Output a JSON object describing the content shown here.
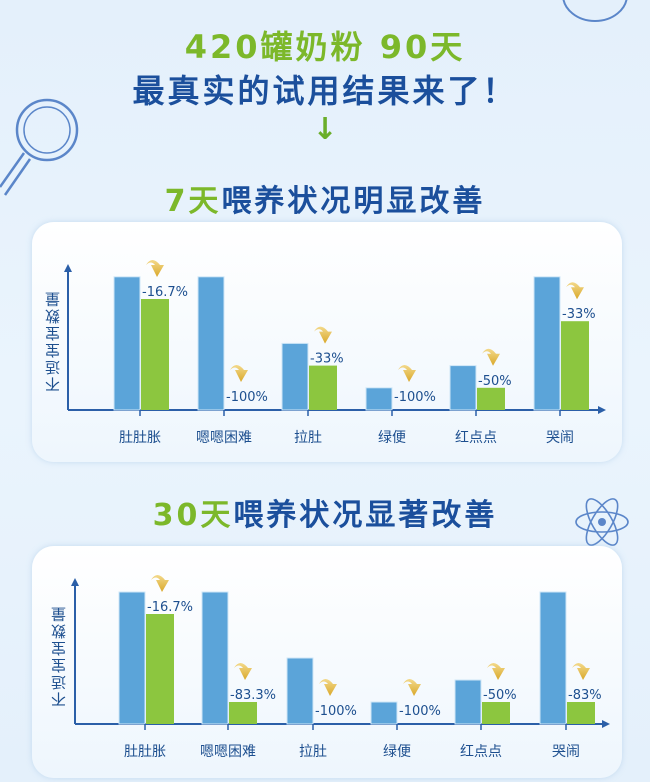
{
  "header": {
    "line1": "420罐奶粉 90天",
    "line2": "最真实的试用结果来了！",
    "arrow_icon": "down-arrow-icon"
  },
  "colors": {
    "before": "#5ba4d9",
    "after": "#8cc63f",
    "text": "#1b4f9c",
    "accent_green": "#7cb82a"
  },
  "chart_data": [
    {
      "type": "bar",
      "title_highlight": "7天",
      "title_rest": "喂养状况明显改善",
      "ylabel": "不适宝宝数量",
      "categories": [
        "肚肚胀",
        "嗯嗯困难",
        "拉肚",
        "绿便",
        "红点点",
        "哭闹"
      ],
      "series": [
        {
          "values": [
            6,
            6,
            3,
            1,
            2,
            6
          ]
        },
        {
          "values": [
            5,
            0,
            2,
            0,
            1,
            4
          ]
        }
      ],
      "annotations": [
        "-16.7%",
        "-100%",
        "-33%",
        "-100%",
        "-50%",
        "-33%"
      ],
      "ylim": [
        0,
        6
      ],
      "grid": false
    },
    {
      "type": "bar",
      "title_highlight": "30天",
      "title_rest": "喂养状况显著改善",
      "ylabel": "不适宝宝数量",
      "categories": [
        "肚肚胀",
        "嗯嗯困难",
        "拉肚",
        "绿便",
        "红点点",
        "哭闹"
      ],
      "series": [
        {
          "values": [
            6,
            6,
            3,
            1,
            2,
            6
          ]
        },
        {
          "values": [
            5,
            1,
            0,
            0,
            1,
            1
          ]
        }
      ],
      "annotations": [
        "-16.7%",
        "-83.3%",
        "-100%",
        "-100%",
        "-50%",
        "-83%"
      ],
      "ylim": [
        0,
        6
      ],
      "grid": false
    }
  ]
}
